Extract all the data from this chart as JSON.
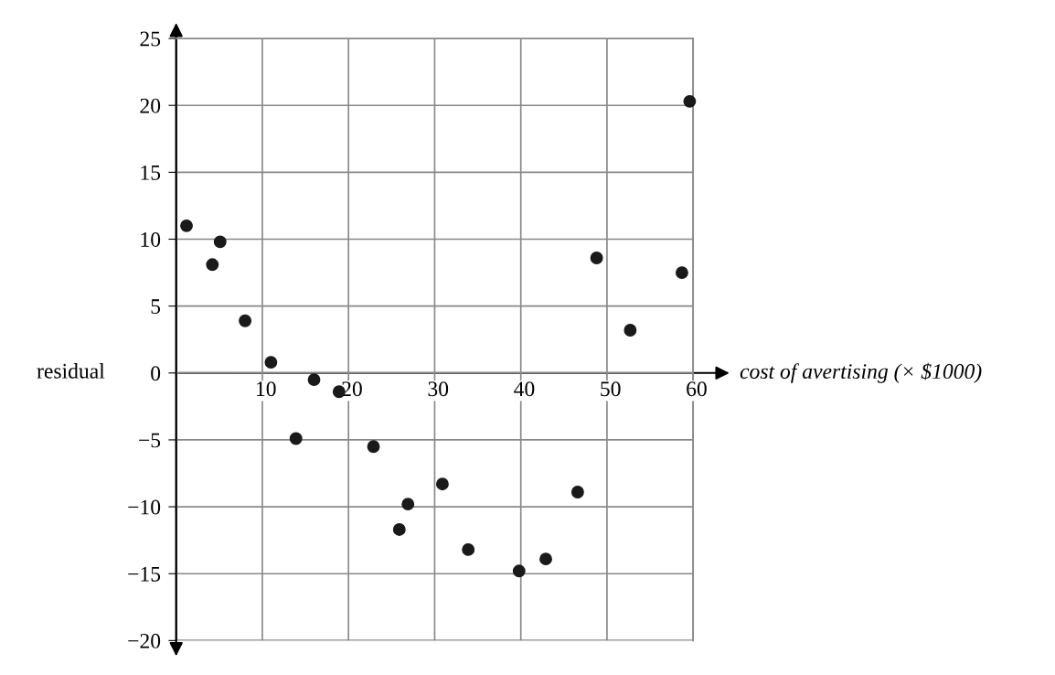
{
  "chart_data": {
    "type": "scatter",
    "xlabel": "cost of avertising (× $1000)",
    "ylabel": "residual",
    "x": [
      1.2,
      4.2,
      5.1,
      8.0,
      11.0,
      13.9,
      16.0,
      18.9,
      22.9,
      25.9,
      26.9,
      30.9,
      33.9,
      39.8,
      42.9,
      46.6,
      48.8,
      52.7,
      58.7,
      59.6
    ],
    "values": [
      11,
      8.1,
      9.8,
      3.9,
      0.8,
      -4.9,
      -0.5,
      -1.4,
      -5.5,
      -11.7,
      -9.8,
      -8.3,
      -13.2,
      -14.8,
      -13.9,
      -8.9,
      8.6,
      3.2,
      7.5,
      20.3
    ],
    "color": "#1a1a1a",
    "marker": "circle",
    "xlim": [
      0,
      60
    ],
    "xticks": [
      10,
      20,
      30,
      40,
      50,
      60
    ],
    "ylim": [
      -20,
      25
    ],
    "yticks": [
      {
        "value": -20,
        "label": "−20"
      },
      {
        "value": -15,
        "label": "−15"
      },
      {
        "value": -10,
        "label": "−10"
      },
      {
        "value": -5,
        "label": "−5"
      },
      0,
      5,
      10,
      15,
      20,
      25
    ],
    "grid": true
  }
}
